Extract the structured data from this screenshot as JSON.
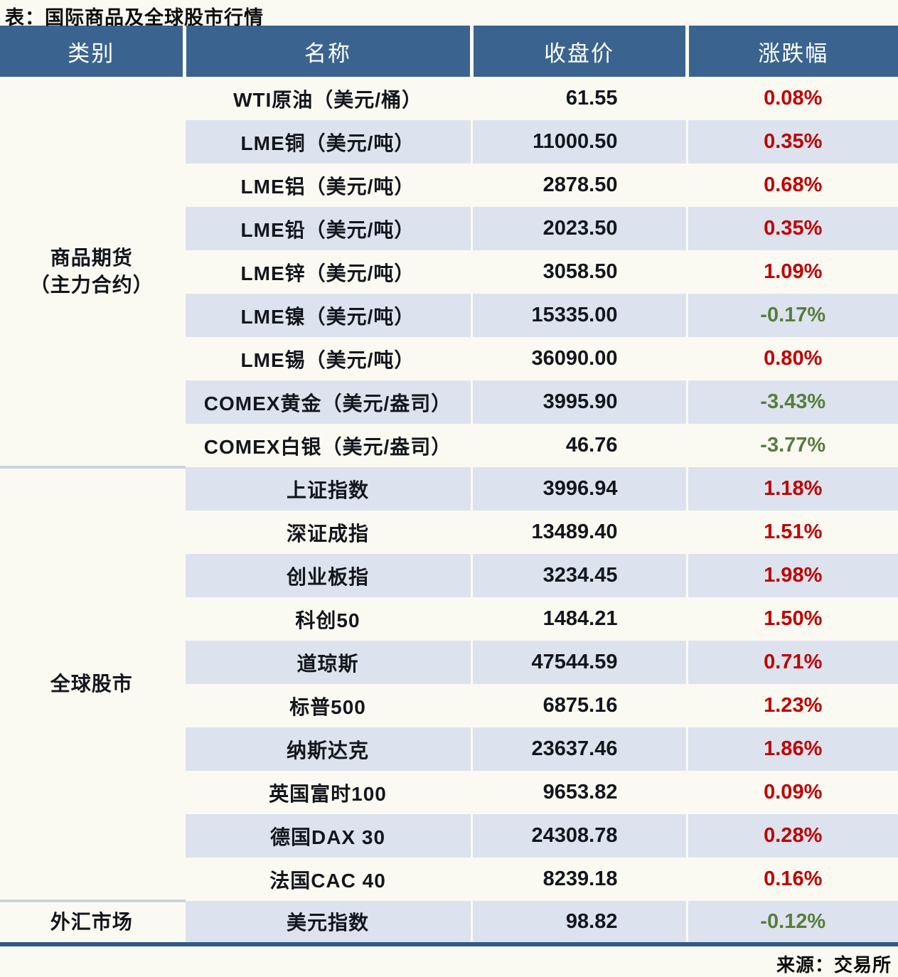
{
  "page": {
    "title": "表：国际商品及全球股市行情",
    "source": "来源：交易所"
  },
  "colors": {
    "header_bg": "#3a648f",
    "header_text": "#ffffff",
    "row_alt": "#dce3ee",
    "row_base": "#fbfaf2",
    "positive_red": "#c00000",
    "negative_green": "#567d3a",
    "section_divider": "#c9d5e3",
    "bottom_rule": "#2e5a88"
  },
  "chart_data": {
    "type": "table",
    "title": "表：国际商品及全球股市行情",
    "source": "来源：交易所",
    "columns": [
      "类别",
      "名称",
      "收盘价",
      "涨跌幅"
    ],
    "sections": [
      {
        "category": "商品期货（主力合约）",
        "category_lines": [
          "商品期货",
          "（主力合约）"
        ],
        "rows": [
          {
            "name": "WTI原油（美元/桶）",
            "close": "61.55",
            "change": "0.08%"
          },
          {
            "name": "LME铜（美元/吨）",
            "close": "11000.50",
            "change": "0.35%"
          },
          {
            "name": "LME铝（美元/吨）",
            "close": "2878.50",
            "change": "0.68%"
          },
          {
            "name": "LME铅（美元/吨）",
            "close": "2023.50",
            "change": "0.35%"
          },
          {
            "name": "LME锌（美元/吨）",
            "close": "3058.50",
            "change": "1.09%"
          },
          {
            "name": "LME镍（美元/吨）",
            "close": "15335.00",
            "change": "-0.17%"
          },
          {
            "name": "LME锡（美元/吨）",
            "close": "36090.00",
            "change": "0.80%"
          },
          {
            "name": "COMEX黄金（美元/盎司）",
            "close": "3995.90",
            "change": "-3.43%"
          },
          {
            "name": "COMEX白银（美元/盎司）",
            "close": "46.76",
            "change": "-3.77%"
          }
        ]
      },
      {
        "category": "全球股市",
        "category_lines": [
          "全球股市"
        ],
        "rows": [
          {
            "name": "上证指数",
            "close": "3996.94",
            "change": "1.18%"
          },
          {
            "name": "深证成指",
            "close": "13489.40",
            "change": "1.51%"
          },
          {
            "name": "创业板指",
            "close": "3234.45",
            "change": "1.98%"
          },
          {
            "name": "科创50",
            "close": "1484.21",
            "change": "1.50%"
          },
          {
            "name": "道琼斯",
            "close": "47544.59",
            "change": "0.71%"
          },
          {
            "name": "标普500",
            "close": "6875.16",
            "change": "1.23%"
          },
          {
            "name": "纳斯达克",
            "close": "23637.46",
            "change": "1.86%"
          },
          {
            "name": "英国富时100",
            "close": "9653.82",
            "change": "0.09%"
          },
          {
            "name": "德国DAX 30",
            "close": "24308.78",
            "change": "0.28%"
          },
          {
            "name": "法国CAC 40",
            "close": "8239.18",
            "change": "0.16%"
          }
        ]
      },
      {
        "category": "外汇市场",
        "category_lines": [
          "外汇市场"
        ],
        "rows": [
          {
            "name": "美元指数",
            "close": "98.82",
            "change": "-0.12%"
          }
        ]
      }
    ]
  }
}
